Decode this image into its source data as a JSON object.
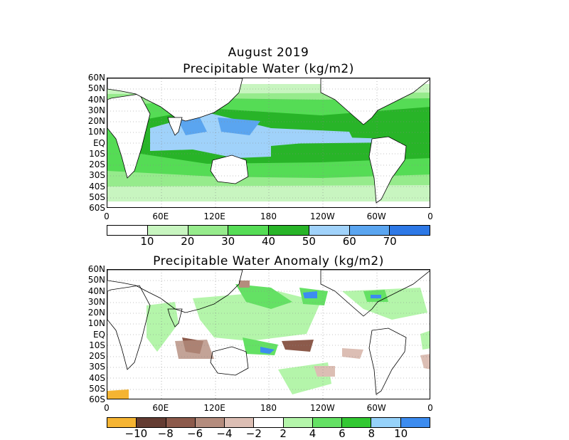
{
  "title": "August 2019",
  "panel1": {
    "title": "Precipitable Water (kg/m2)",
    "lat_labels": [
      "60N",
      "50N",
      "40N",
      "30N",
      "20N",
      "10N",
      "EQ",
      "10S",
      "20S",
      "30S",
      "40S",
      "50S",
      "60S"
    ],
    "lon_labels": [
      "0",
      "60E",
      "120E",
      "180",
      "120W",
      "60W",
      "0"
    ],
    "colorbar": {
      "colors": [
        "#ffffff",
        "#c8f5c0",
        "#96eb8c",
        "#55dc55",
        "#28b428",
        "#a0d2fa",
        "#5aa5f0",
        "#2d78e6"
      ],
      "labels": [
        "10",
        "20",
        "30",
        "40",
        "50",
        "60",
        "70"
      ]
    }
  },
  "panel2": {
    "title": "Precipitable Water Anomaly (kg/m2)",
    "lat_labels": [
      "60N",
      "50N",
      "40N",
      "30N",
      "20N",
      "10N",
      "EQ",
      "10S",
      "20S",
      "30S",
      "40S",
      "50S",
      "60S"
    ],
    "lon_labels": [
      "0",
      "60E",
      "120E",
      "180",
      "120W",
      "60W",
      "0"
    ],
    "colorbar": {
      "colors": [
        "#f5b432",
        "#643c32",
        "#8c5a4b",
        "#b48c7d",
        "#dcbeb4",
        "#ffffff",
        "#b4f5aa",
        "#64e164",
        "#32c832",
        "#96d2fa",
        "#3c8cf0"
      ],
      "labels": [
        "−10",
        "−8",
        "−6",
        "−4",
        "−2",
        "2",
        "4",
        "6",
        "8",
        "10"
      ]
    }
  }
}
